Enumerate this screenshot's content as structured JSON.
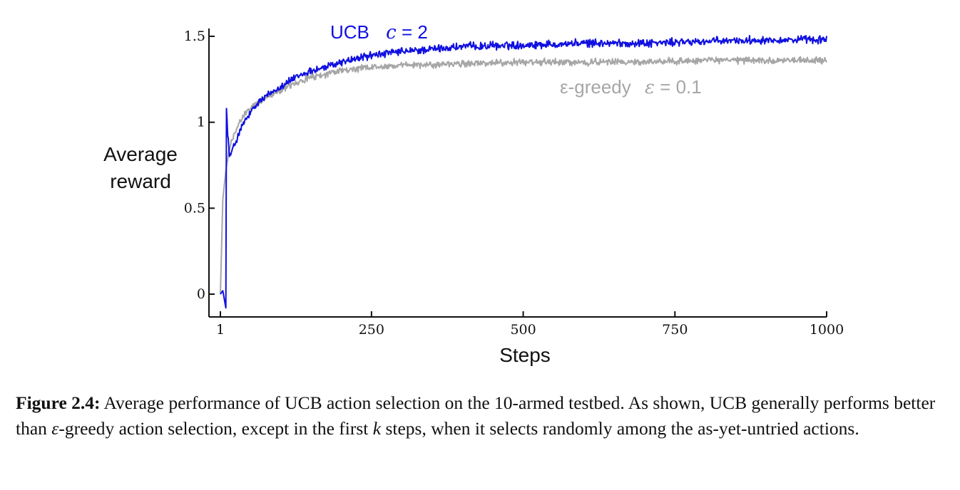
{
  "chart_data": {
    "type": "line",
    "xlabel": "Steps",
    "ylabel_line1": "Average",
    "ylabel_line2": "reward",
    "xlim": [
      1,
      1000
    ],
    "ylim": [
      -0.1,
      1.55
    ],
    "x_ticks": [
      1,
      250,
      500,
      750,
      1000
    ],
    "x_tick_labels": [
      "1",
      "250",
      "500",
      "750",
      "1000"
    ],
    "y_ticks": [
      0,
      0.5,
      1,
      1.5
    ],
    "y_tick_labels": [
      "0",
      "0.5",
      "1",
      "1.5"
    ],
    "grid": false,
    "series": [
      {
        "name_prefix": "UCB",
        "name_param": "c",
        "name_value": " = 2",
        "color": "#1010e0",
        "x": [
          1,
          5,
          10,
          11,
          13,
          16,
          20,
          30,
          40,
          50,
          65,
          80,
          100,
          125,
          150,
          175,
          200,
          250,
          300,
          400,
          500,
          600,
          700,
          800,
          900,
          1000
        ],
        "y": [
          0.0,
          0.02,
          -0.08,
          1.08,
          0.95,
          0.8,
          0.83,
          0.92,
          1.0,
          1.05,
          1.12,
          1.16,
          1.21,
          1.26,
          1.3,
          1.32,
          1.35,
          1.39,
          1.41,
          1.44,
          1.45,
          1.46,
          1.46,
          1.47,
          1.48,
          1.48
        ]
      },
      {
        "name_prefix": "ε-greedy",
        "name_param": "ε",
        "name_value": " = 0.1",
        "color": "#a6a6a6",
        "x": [
          1,
          5,
          10,
          15,
          20,
          30,
          40,
          50,
          65,
          80,
          100,
          125,
          150,
          175,
          200,
          250,
          300,
          400,
          500,
          600,
          700,
          800,
          900,
          1000
        ],
        "y": [
          0.0,
          0.55,
          0.72,
          0.83,
          0.9,
          0.98,
          1.04,
          1.08,
          1.12,
          1.15,
          1.19,
          1.23,
          1.26,
          1.28,
          1.3,
          1.32,
          1.33,
          1.34,
          1.35,
          1.35,
          1.35,
          1.36,
          1.36,
          1.36
        ]
      }
    ]
  },
  "caption": {
    "label": "Figure 2.4:",
    "text_part1": " Average performance of UCB action selection on the 10-armed testbed. As shown, UCB generally performs better than ",
    "epsilon": "ε",
    "text_part2": "-greedy action selection, except in the first ",
    "k": "k",
    "text_part3": " steps, when it selects randomly among the as-yet-untried actions."
  }
}
